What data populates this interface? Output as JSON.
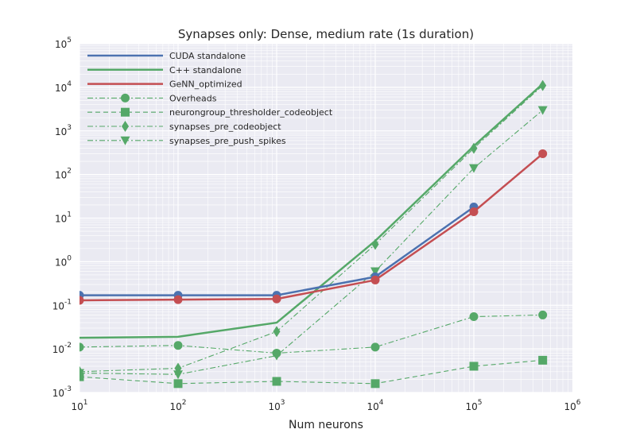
{
  "chart_data": {
    "type": "line",
    "title": "Synapses only: Dense, medium rate (1s duration)",
    "xlabel": "Num neurons",
    "ylabel": "",
    "xscale": "log",
    "yscale": "log",
    "xlim": [
      10,
      1000000
    ],
    "ylim": [
      0.001,
      100000
    ],
    "grid": true,
    "legend_position": "top-left",
    "x_tick_labels": [
      {
        "value": 10,
        "base": "10",
        "exp": "1"
      },
      {
        "value": 100,
        "base": "10",
        "exp": "2"
      },
      {
        "value": 1000,
        "base": "10",
        "exp": "3"
      },
      {
        "value": 10000,
        "base": "10",
        "exp": "4"
      },
      {
        "value": 100000,
        "base": "10",
        "exp": "5"
      },
      {
        "value": 1000000,
        "base": "10",
        "exp": "6"
      }
    ],
    "y_tick_labels": [
      {
        "value": 0.001,
        "base": "10",
        "exp": "-3"
      },
      {
        "value": 0.01,
        "base": "10",
        "exp": "-2"
      },
      {
        "value": 0.1,
        "base": "10",
        "exp": "-1"
      },
      {
        "value": 1,
        "base": "10",
        "exp": "0"
      },
      {
        "value": 10,
        "base": "10",
        "exp": "1"
      },
      {
        "value": 100,
        "base": "10",
        "exp": "2"
      },
      {
        "value": 1000,
        "base": "10",
        "exp": "3"
      },
      {
        "value": 10000,
        "base": "10",
        "exp": "4"
      },
      {
        "value": 100000,
        "base": "10",
        "exp": "5"
      }
    ],
    "series": [
      {
        "name": "CUDA standalone",
        "color": "#4c72b0",
        "line": "solid",
        "marker": "none",
        "x": [
          10,
          100,
          1000,
          10000,
          100000
        ],
        "y": [
          0.17,
          0.17,
          0.17,
          0.45,
          18
        ]
      },
      {
        "name": "C++ standalone",
        "color": "#55a868",
        "line": "solid",
        "marker": "none",
        "x": [
          10,
          100,
          1000,
          10000,
          100000,
          500000
        ],
        "y": [
          0.018,
          0.019,
          0.04,
          3,
          450,
          12000
        ]
      },
      {
        "name": "GeNN_optimized",
        "color": "#c44e52",
        "line": "solid",
        "marker": "none",
        "x": [
          10,
          100,
          1000,
          10000,
          100000,
          500000
        ],
        "y": [
          0.13,
          0.135,
          0.14,
          0.38,
          14,
          300
        ]
      },
      {
        "name": "Overheads",
        "color": "#55a868",
        "line": "dashdot",
        "marker": "circle",
        "x": [
          10,
          100,
          1000,
          10000,
          100000,
          500000
        ],
        "y": [
          0.011,
          0.012,
          0.008,
          0.011,
          0.055,
          0.06
        ]
      },
      {
        "name": "neurongroup_thresholder_codeobject",
        "color": "#55a868",
        "line": "dashed",
        "marker": "square",
        "x": [
          10,
          100,
          1000,
          10000,
          100000,
          500000
        ],
        "y": [
          0.0023,
          0.0016,
          0.0018,
          0.0016,
          0.004,
          0.0055
        ]
      },
      {
        "name": "synapses_pre_codeobject",
        "color": "#55a868",
        "line": "dashdot",
        "marker": "diamond",
        "x": [
          10,
          100,
          1000,
          10000,
          100000,
          500000
        ],
        "y": [
          0.003,
          0.0036,
          0.025,
          2.5,
          400,
          11000
        ]
      },
      {
        "name": "synapses_pre_push_spikes",
        "color": "#55a868",
        "line": "dashdot",
        "marker": "triangle-down",
        "x": [
          10,
          100,
          1000,
          10000,
          100000,
          500000
        ],
        "y": [
          0.0028,
          0.0026,
          0.007,
          0.6,
          140,
          3000
        ]
      }
    ]
  }
}
